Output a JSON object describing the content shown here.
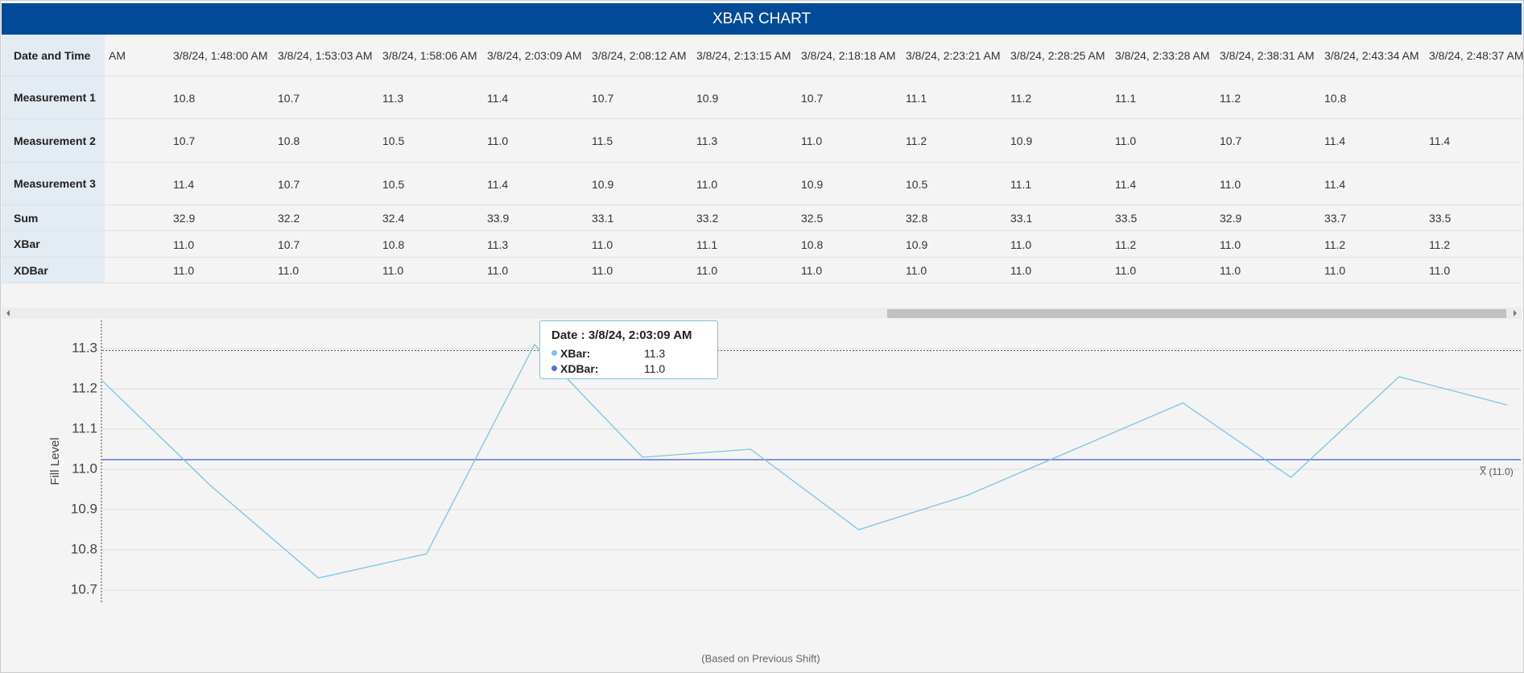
{
  "header": {
    "title": "XBAR CHART"
  },
  "table": {
    "rows": [
      {
        "label": "Date and Time",
        "cells": [
          "AM",
          "3/8/24, 1:48:00 AM",
          "3/8/24, 1:53:03 AM",
          "3/8/24, 1:58:06 AM",
          "3/8/24, 2:03:09 AM",
          "3/8/24, 2:08:12 AM",
          "3/8/24, 2:13:15 AM",
          "3/8/24, 2:18:18 AM",
          "3/8/24, 2:23:21 AM",
          "3/8/24, 2:28:25 AM",
          "3/8/24, 2:33:28 AM",
          "3/8/24, 2:38:31 AM",
          "3/8/24, 2:43:34 AM",
          "3/8/24, 2:48:37 AM"
        ]
      },
      {
        "label": "Measurement 1",
        "cells": [
          null,
          "10.8",
          "10.7",
          "11.3",
          "11.4",
          "10.7",
          "10.9",
          "10.7",
          "11.1",
          "11.2",
          "11.1",
          "11.2",
          "10.8",
          null
        ]
      },
      {
        "label": "Measurement 2",
        "cells": [
          null,
          "10.7",
          "10.8",
          "10.5",
          "11.0",
          "11.5",
          "11.3",
          "11.0",
          "11.2",
          "10.9",
          "11.0",
          "10.7",
          "11.4",
          "11.4"
        ]
      },
      {
        "label": "Measurement 3",
        "cells": [
          null,
          "11.4",
          "10.7",
          "10.5",
          "11.4",
          "10.9",
          "11.0",
          "10.9",
          "10.5",
          "11.1",
          "11.4",
          "11.0",
          "11.4",
          null
        ]
      },
      {
        "label": "Sum",
        "cells": [
          null,
          "32.9",
          "32.2",
          "32.4",
          "33.9",
          "33.1",
          "33.2",
          "32.5",
          "32.8",
          "33.1",
          "33.5",
          "32.9",
          "33.7",
          "33.5"
        ]
      },
      {
        "label": "XBar",
        "cells": [
          null,
          "11.0",
          "10.7",
          "10.8",
          "11.3",
          "11.0",
          "11.1",
          "10.8",
          "10.9",
          "11.0",
          "11.2",
          "11.0",
          "11.2",
          "11.2"
        ]
      },
      {
        "label": "XDBar",
        "cells": [
          null,
          "11.0",
          "11.0",
          "11.0",
          "11.0",
          "11.0",
          "11.0",
          "11.0",
          "11.0",
          "11.0",
          "11.0",
          "11.0",
          "11.0",
          "11.0"
        ]
      }
    ]
  },
  "chart_data": {
    "type": "line",
    "y_label": "Fill Level",
    "ylim": [
      10.65,
      11.37
    ],
    "yticks": [
      10.7,
      10.8,
      10.9,
      {
        "value": 11,
        "label": "11.0"
      },
      11.1,
      11.2,
      11.3
    ],
    "grid": true,
    "series": [
      {
        "name": "XBar",
        "color": "#7cc3e8",
        "values": [
          11.22,
          10.96,
          10.73,
          10.79,
          11.31,
          11.03,
          11.05,
          10.85,
          10.935,
          11.05,
          11.165,
          10.98,
          11.23,
          11.16
        ]
      }
    ],
    "center_line": {
      "name": "XDBar",
      "color": "#5b6ee1",
      "value": 11.024,
      "label": "X̿ (11.0)"
    },
    "reference_lines": [
      {
        "value": 11.295,
        "style": "dotted"
      }
    ],
    "footnote": "(Based on Previous Shift)"
  },
  "tooltip": {
    "title": "Date : 3/8/24, 2:03:09 AM",
    "rows": [
      {
        "name": "XBar:",
        "value": "11.3",
        "color": "#7cc3e8"
      },
      {
        "name": "XDBar:",
        "value": "11.0",
        "color": "#5b6ee1"
      }
    ]
  }
}
